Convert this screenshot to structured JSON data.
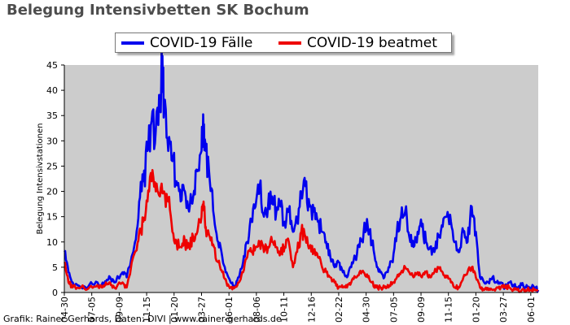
{
  "chart_data": {
    "type": "line",
    "title": "Belegung Intensivbetten SK Bochum",
    "xlabel": "",
    "ylabel": "Belegung Intensivstationen",
    "ylim": [
      0,
      45
    ],
    "yticks": [
      0,
      5,
      10,
      15,
      20,
      25,
      30,
      35,
      40,
      45
    ],
    "xticks": [
      "04-30",
      "07-05",
      "09-09",
      "11-15",
      "01-20",
      "03-27",
      "06-01",
      "08-06",
      "10-11",
      "12-16",
      "02-22",
      "04-30",
      "07-05",
      "09-09",
      "11-15",
      "01-20",
      "03-27",
      "06-01"
    ],
    "grid": false,
    "legend_position": "top",
    "x_index_range": [
      0,
      1140
    ],
    "tick_interval_days": 66,
    "series": [
      {
        "name": "COVID-19 Fälle",
        "color": "#0000ee",
        "points": [
          [
            0,
            8
          ],
          [
            10,
            4
          ],
          [
            20,
            2
          ],
          [
            40,
            1
          ],
          [
            60,
            1.5
          ],
          [
            80,
            2
          ],
          [
            90,
            1.5
          ],
          [
            100,
            2
          ],
          [
            110,
            3
          ],
          [
            120,
            2
          ],
          [
            140,
            4
          ],
          [
            150,
            3
          ],
          [
            170,
            10
          ],
          [
            180,
            18
          ],
          [
            190,
            22
          ],
          [
            200,
            28
          ],
          [
            210,
            34
          ],
          [
            220,
            32
          ],
          [
            230,
            38
          ],
          [
            235,
            44
          ],
          [
            240,
            38
          ],
          [
            250,
            28
          ],
          [
            260,
            26
          ],
          [
            270,
            22
          ],
          [
            280,
            18
          ],
          [
            290,
            20
          ],
          [
            300,
            16
          ],
          [
            310,
            19
          ],
          [
            320,
            24
          ],
          [
            330,
            28
          ],
          [
            335,
            32
          ],
          [
            340,
            28
          ],
          [
            350,
            22
          ],
          [
            360,
            15
          ],
          [
            370,
            10
          ],
          [
            380,
            7
          ],
          [
            390,
            4
          ],
          [
            400,
            2
          ],
          [
            410,
            1
          ],
          [
            420,
            3
          ],
          [
            430,
            6
          ],
          [
            440,
            10
          ],
          [
            450,
            14
          ],
          [
            460,
            17
          ],
          [
            470,
            21
          ],
          [
            480,
            15
          ],
          [
            490,
            17
          ],
          [
            500,
            19
          ],
          [
            510,
            16
          ],
          [
            520,
            17
          ],
          [
            530,
            14
          ],
          [
            540,
            16
          ],
          [
            550,
            12
          ],
          [
            560,
            14
          ],
          [
            570,
            20
          ],
          [
            580,
            21
          ],
          [
            590,
            17
          ],
          [
            600,
            16
          ],
          [
            610,
            14
          ],
          [
            620,
            12
          ],
          [
            630,
            10
          ],
          [
            640,
            7
          ],
          [
            650,
            5
          ],
          [
            660,
            6
          ],
          [
            670,
            4
          ],
          [
            680,
            3
          ],
          [
            690,
            5
          ],
          [
            700,
            7
          ],
          [
            710,
            9
          ],
          [
            720,
            12
          ],
          [
            730,
            13
          ],
          [
            740,
            10
          ],
          [
            750,
            6
          ],
          [
            760,
            4
          ],
          [
            770,
            3
          ],
          [
            780,
            5
          ],
          [
            790,
            6
          ],
          [
            800,
            12
          ],
          [
            810,
            15
          ],
          [
            820,
            16
          ],
          [
            830,
            11
          ],
          [
            840,
            9
          ],
          [
            850,
            12
          ],
          [
            860,
            13
          ],
          [
            870,
            10
          ],
          [
            880,
            9
          ],
          [
            890,
            8
          ],
          [
            900,
            11
          ],
          [
            910,
            13
          ],
          [
            920,
            15
          ],
          [
            930,
            14
          ],
          [
            940,
            10
          ],
          [
            950,
            8
          ],
          [
            960,
            12
          ],
          [
            970,
            10
          ],
          [
            980,
            17
          ],
          [
            990,
            12
          ],
          [
            1000,
            3
          ],
          [
            1010,
            2
          ],
          [
            1020,
            2
          ],
          [
            1030,
            3
          ],
          [
            1040,
            2
          ],
          [
            1050,
            2
          ],
          [
            1060,
            1
          ],
          [
            1070,
            2
          ],
          [
            1080,
            1.5
          ],
          [
            1090,
            1
          ],
          [
            1100,
            1.5
          ],
          [
            1110,
            1
          ],
          [
            1120,
            1
          ],
          [
            1130,
            1
          ],
          [
            1140,
            0.5
          ]
        ]
      },
      {
        "name": "COVID-19 beatmet",
        "color": "#ee0000",
        "points": [
          [
            0,
            6
          ],
          [
            10,
            2
          ],
          [
            20,
            1
          ],
          [
            40,
            1
          ],
          [
            60,
            1
          ],
          [
            80,
            1.5
          ],
          [
            90,
            1
          ],
          [
            100,
            2
          ],
          [
            110,
            2
          ],
          [
            120,
            1
          ],
          [
            140,
            2
          ],
          [
            150,
            1
          ],
          [
            170,
            8
          ],
          [
            180,
            12
          ],
          [
            190,
            14
          ],
          [
            200,
            18
          ],
          [
            210,
            22
          ],
          [
            220,
            20
          ],
          [
            230,
            19
          ],
          [
            240,
            20
          ],
          [
            250,
            18
          ],
          [
            260,
            12
          ],
          [
            270,
            10
          ],
          [
            280,
            9
          ],
          [
            290,
            10
          ],
          [
            300,
            9
          ],
          [
            310,
            11
          ],
          [
            320,
            12
          ],
          [
            330,
            15
          ],
          [
            335,
            18
          ],
          [
            340,
            13
          ],
          [
            350,
            11
          ],
          [
            360,
            9
          ],
          [
            370,
            6
          ],
          [
            380,
            4
          ],
          [
            390,
            2
          ],
          [
            400,
            1
          ],
          [
            410,
            1
          ],
          [
            420,
            2
          ],
          [
            430,
            4
          ],
          [
            440,
            7
          ],
          [
            450,
            8
          ],
          [
            460,
            9
          ],
          [
            470,
            10
          ],
          [
            480,
            8
          ],
          [
            490,
            9
          ],
          [
            500,
            10
          ],
          [
            510,
            9
          ],
          [
            520,
            8
          ],
          [
            530,
            9
          ],
          [
            540,
            10
          ],
          [
            550,
            5
          ],
          [
            560,
            8
          ],
          [
            570,
            12
          ],
          [
            580,
            11
          ],
          [
            590,
            9
          ],
          [
            600,
            8
          ],
          [
            610,
            7
          ],
          [
            620,
            5
          ],
          [
            630,
            4
          ],
          [
            640,
            3
          ],
          [
            650,
            2
          ],
          [
            660,
            1
          ],
          [
            670,
            1
          ],
          [
            680,
            1
          ],
          [
            690,
            2
          ],
          [
            700,
            3
          ],
          [
            710,
            4
          ],
          [
            720,
            4
          ],
          [
            730,
            3
          ],
          [
            740,
            2
          ],
          [
            750,
            1
          ],
          [
            760,
            1
          ],
          [
            770,
            1
          ],
          [
            780,
            1
          ],
          [
            790,
            2
          ],
          [
            800,
            3
          ],
          [
            810,
            4
          ],
          [
            820,
            5
          ],
          [
            830,
            4
          ],
          [
            840,
            3
          ],
          [
            850,
            4
          ],
          [
            860,
            3
          ],
          [
            870,
            4
          ],
          [
            880,
            3
          ],
          [
            890,
            4
          ],
          [
            900,
            5
          ],
          [
            910,
            4
          ],
          [
            920,
            3
          ],
          [
            930,
            2
          ],
          [
            940,
            1
          ],
          [
            950,
            1
          ],
          [
            960,
            3
          ],
          [
            970,
            4
          ],
          [
            980,
            5
          ],
          [
            990,
            3
          ],
          [
            1000,
            1
          ],
          [
            1010,
            0.5
          ],
          [
            1020,
            0.5
          ],
          [
            1030,
            0.5
          ],
          [
            1040,
            1
          ],
          [
            1050,
            1
          ],
          [
            1060,
            1
          ],
          [
            1070,
            1
          ],
          [
            1080,
            0.5
          ],
          [
            1090,
            0.5
          ],
          [
            1100,
            0.5
          ],
          [
            1110,
            0.5
          ],
          [
            1120,
            0.5
          ],
          [
            1130,
            0.5
          ],
          [
            1140,
            0.5
          ]
        ]
      }
    ]
  },
  "footer": "Grafik: Rainer Gerhards, Daten: DIVI | www.rainer-gerhards.de"
}
